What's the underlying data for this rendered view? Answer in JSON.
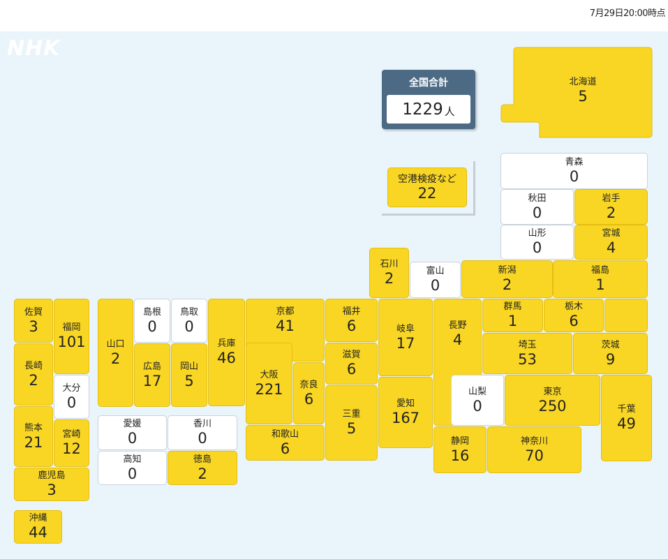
{
  "header": {
    "timestamp": "7月29日20:00時点"
  },
  "logo": "NHK",
  "total": {
    "label": "全国合計",
    "value": "1229",
    "unit": "人"
  },
  "airport": {
    "label": "空港検疫など",
    "value": "22"
  },
  "colors": {
    "has_cases": "#f9d623",
    "zero_cases": "#ffffff",
    "total_box": "#4c6a84",
    "background": "#e9f4fb"
  },
  "prefectures": {
    "hokkaido": {
      "name": "北海道",
      "value": "5"
    },
    "aomori": {
      "name": "青森",
      "value": "0"
    },
    "akita": {
      "name": "秋田",
      "value": "0"
    },
    "iwate": {
      "name": "岩手",
      "value": "2"
    },
    "yamagata": {
      "name": "山形",
      "value": "0"
    },
    "miyagi": {
      "name": "宮城",
      "value": "4"
    },
    "ishikawa": {
      "name": "石川",
      "value": "2"
    },
    "toyama": {
      "name": "富山",
      "value": "0"
    },
    "niigata": {
      "name": "新潟",
      "value": "2"
    },
    "fukushima": {
      "name": "福島",
      "value": "1"
    },
    "fukui": {
      "name": "福井",
      "value": "6"
    },
    "gifu": {
      "name": "岐阜",
      "value": "17"
    },
    "nagano": {
      "name": "長野",
      "value": "4"
    },
    "gunma": {
      "name": "群馬",
      "value": "1"
    },
    "tochigi": {
      "name": "栃木",
      "value": "6"
    },
    "saitama": {
      "name": "埼玉",
      "value": "53"
    },
    "ibaraki": {
      "name": "茨城",
      "value": "9"
    },
    "yamanashi": {
      "name": "山梨",
      "value": "0"
    },
    "tokyo": {
      "name": "東京",
      "value": "250"
    },
    "chiba": {
      "name": "千葉",
      "value": "49"
    },
    "shizuoka": {
      "name": "静岡",
      "value": "16"
    },
    "kanagawa": {
      "name": "神奈川",
      "value": "70"
    },
    "aichi": {
      "name": "愛知",
      "value": "167"
    },
    "shiga": {
      "name": "滋賀",
      "value": "6"
    },
    "mie": {
      "name": "三重",
      "value": "5"
    },
    "kyoto": {
      "name": "京都",
      "value": "41"
    },
    "osaka": {
      "name": "大阪",
      "value": "221"
    },
    "nara": {
      "name": "奈良",
      "value": "6"
    },
    "wakayama": {
      "name": "和歌山",
      "value": "6"
    },
    "hyogo": {
      "name": "兵庫",
      "value": "46"
    },
    "shimane": {
      "name": "島根",
      "value": "0"
    },
    "tottori": {
      "name": "鳥取",
      "value": "0"
    },
    "hiroshima": {
      "name": "広島",
      "value": "17"
    },
    "okayama": {
      "name": "岡山",
      "value": "5"
    },
    "yamaguchi": {
      "name": "山口",
      "value": "2"
    },
    "ehime": {
      "name": "愛媛",
      "value": "0"
    },
    "kagawa": {
      "name": "香川",
      "value": "0"
    },
    "kochi": {
      "name": "高知",
      "value": "0"
    },
    "tokushima": {
      "name": "徳島",
      "value": "2"
    },
    "saga": {
      "name": "佐賀",
      "value": "3"
    },
    "fukuoka": {
      "name": "福岡",
      "value": "101"
    },
    "nagasaki": {
      "name": "長崎",
      "value": "2"
    },
    "oita": {
      "name": "大分",
      "value": "0"
    },
    "kumamoto": {
      "name": "熊本",
      "value": "21"
    },
    "miyazaki": {
      "name": "宮崎",
      "value": "12"
    },
    "kagoshima": {
      "name": "鹿児島",
      "value": "3"
    },
    "okinawa": {
      "name": "沖縄",
      "value": "44"
    }
  }
}
